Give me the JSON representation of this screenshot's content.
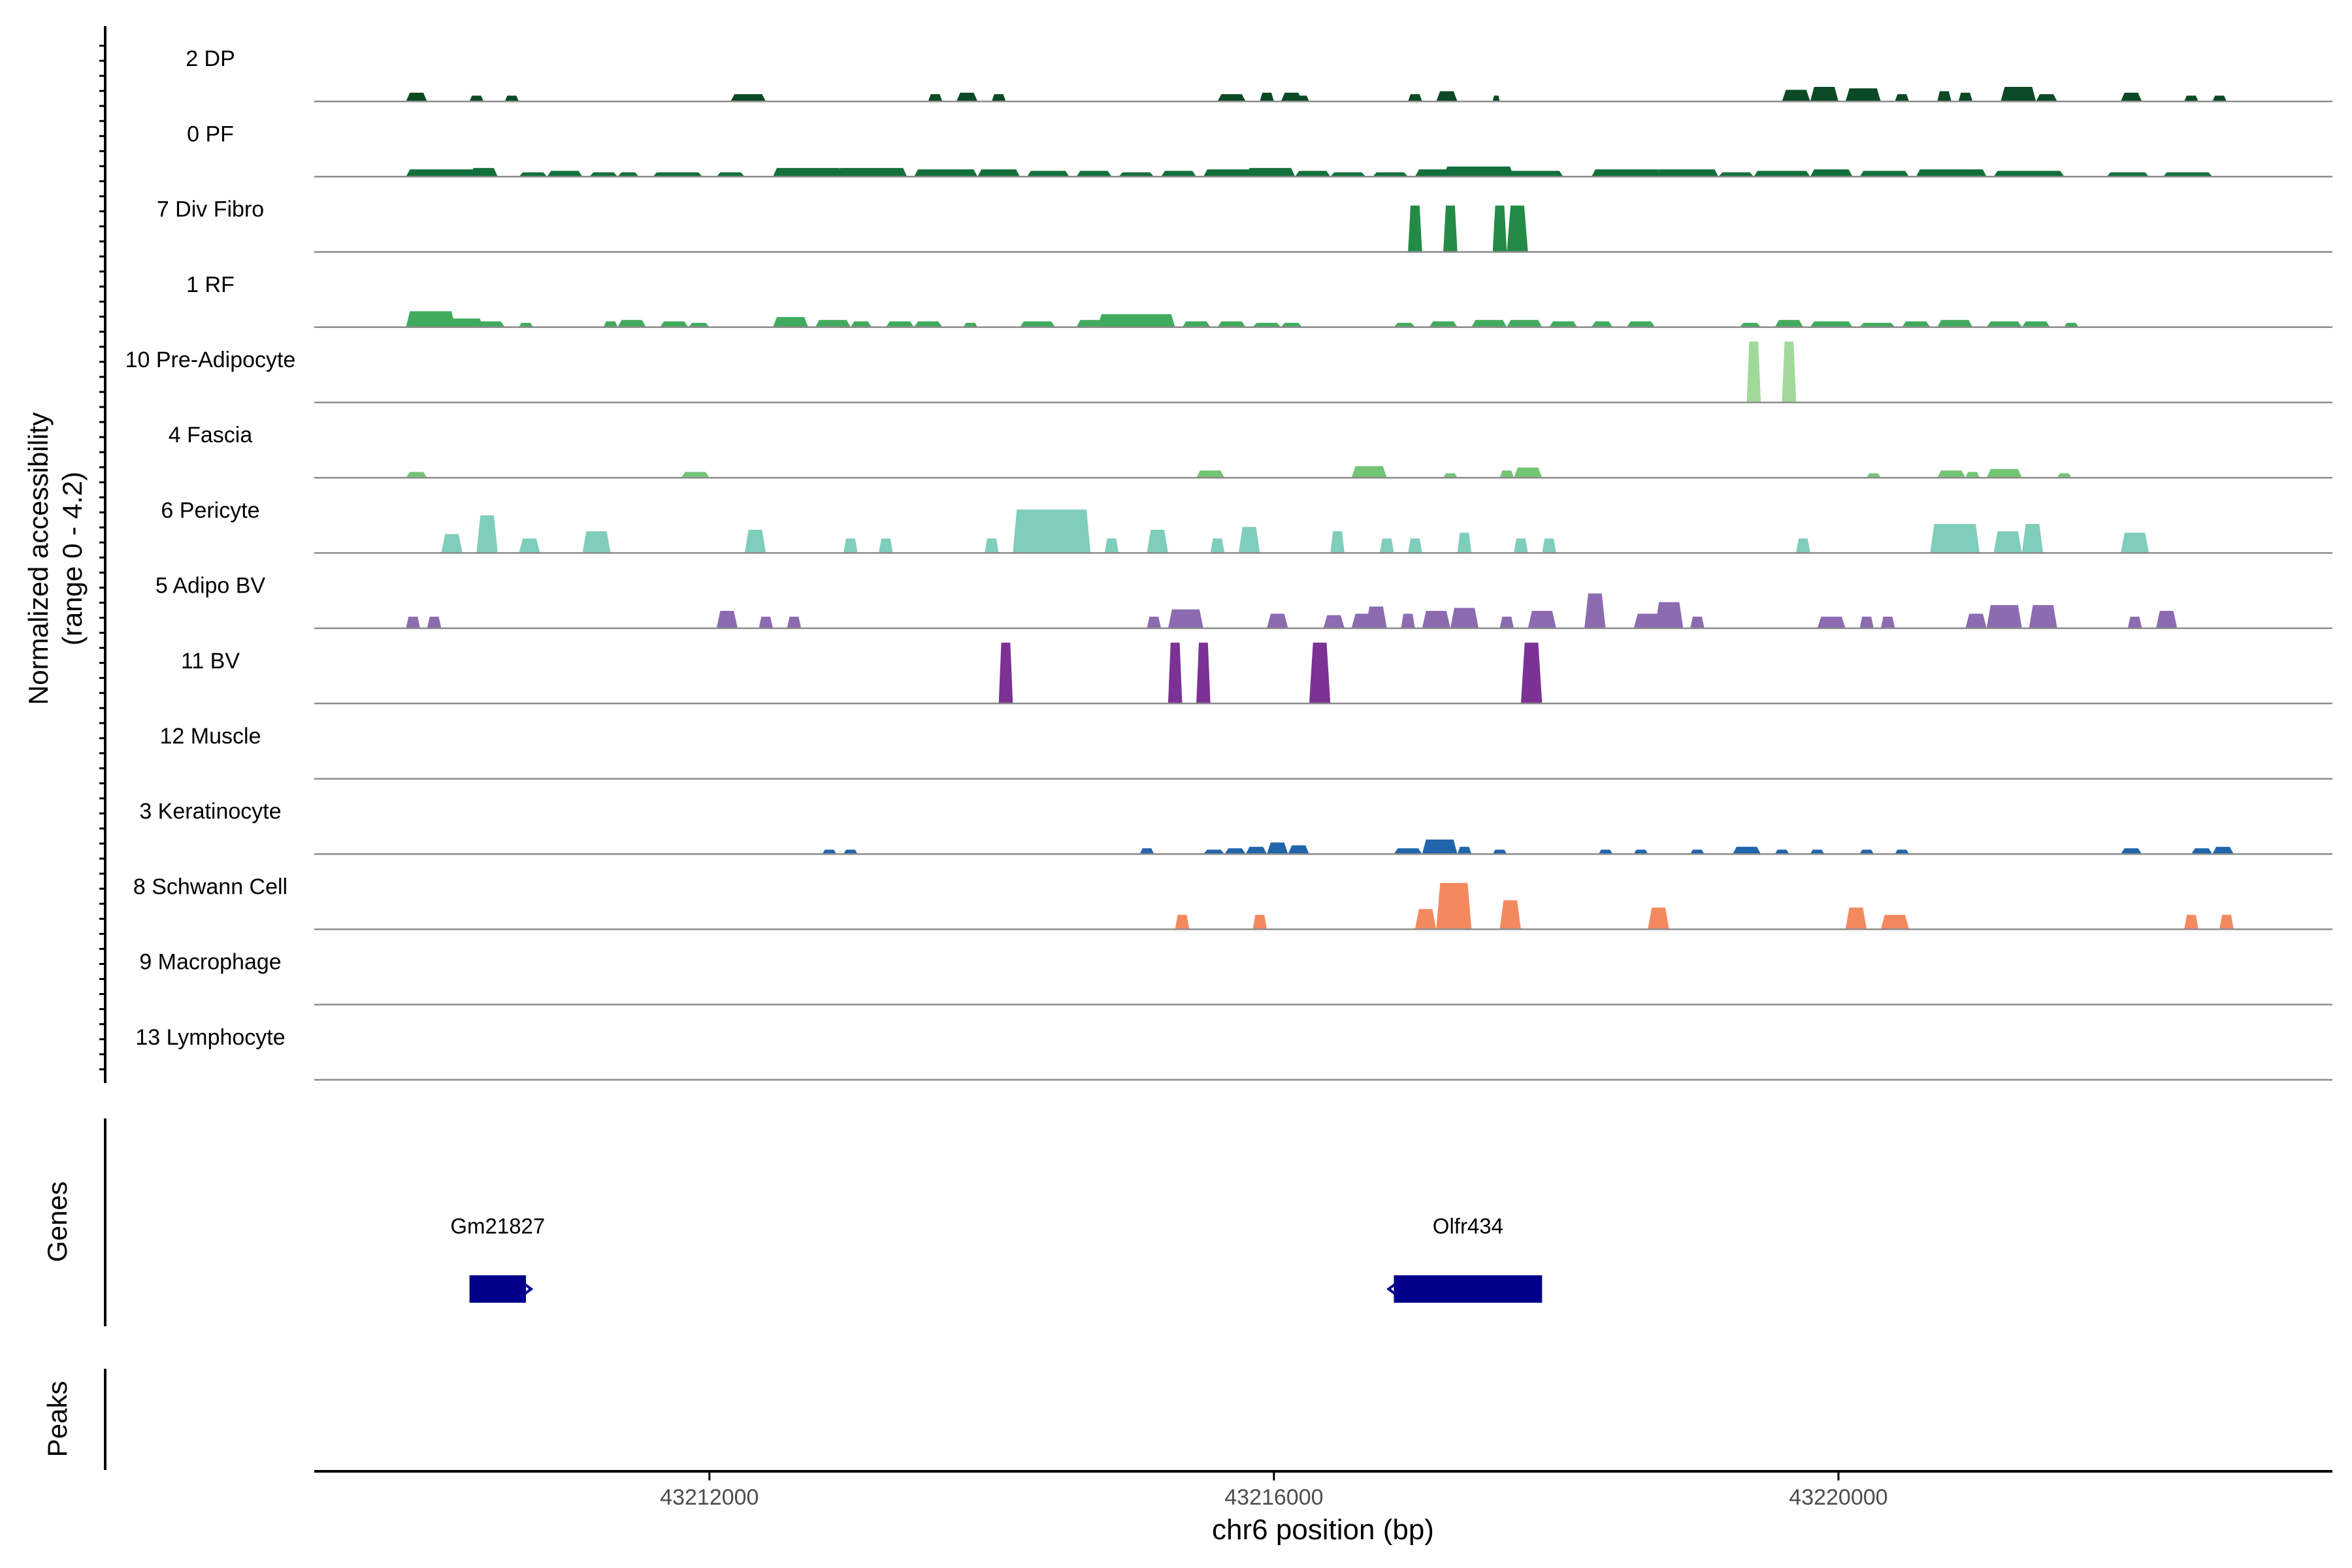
{
  "chart_data": {
    "type": "area",
    "chrom": "chr6",
    "xlabel": "chr6 position (bp)",
    "xlim": [
      43209200,
      43223500
    ],
    "xticks": [
      43212000,
      43216000,
      43220000
    ],
    "y_axis_title_line1": "Normalized accessibility",
    "y_axis_title_line2": "(range 0 - 4.2)",
    "ylim": [
      0,
      4.2
    ],
    "genes_label": "Genes",
    "peaks_label": "Peaks",
    "tracks": [
      {
        "name": "2 DP",
        "color": "#0b4a24",
        "peaks": [
          [
            43209850,
            43210000,
            0.6
          ],
          [
            43210300,
            43210400,
            0.4
          ],
          [
            43210550,
            43210650,
            0.4
          ],
          [
            43212150,
            43212400,
            0.5
          ],
          [
            43213550,
            43213650,
            0.5
          ],
          [
            43213750,
            43213900,
            0.6
          ],
          [
            43214000,
            43214100,
            0.5
          ],
          [
            43215600,
            43215800,
            0.5
          ],
          [
            43215900,
            43216000,
            0.6
          ],
          [
            43216050,
            43216200,
            0.6
          ],
          [
            43216150,
            43216250,
            0.4
          ],
          [
            43216950,
            43217050,
            0.5
          ],
          [
            43217150,
            43217300,
            0.7
          ],
          [
            43217550,
            43217600,
            0.4
          ],
          [
            43219600,
            43219800,
            0.8
          ],
          [
            43219800,
            43220000,
            1.0
          ],
          [
            43220050,
            43220300,
            0.9
          ],
          [
            43220400,
            43220500,
            0.5
          ],
          [
            43220700,
            43220800,
            0.7
          ],
          [
            43220850,
            43220950,
            0.6
          ],
          [
            43221150,
            43221400,
            1.0
          ],
          [
            43221400,
            43221550,
            0.5
          ],
          [
            43222000,
            43222150,
            0.6
          ],
          [
            43222450,
            43222550,
            0.4
          ],
          [
            43222650,
            43222750,
            0.4
          ]
        ]
      },
      {
        "name": "0 PF",
        "color": "#13703a",
        "peaks": [
          [
            43209850,
            43210400,
            0.5
          ],
          [
            43210300,
            43210500,
            0.6
          ],
          [
            43210650,
            43210850,
            0.3
          ],
          [
            43210850,
            43211100,
            0.4
          ],
          [
            43211150,
            43211350,
            0.3
          ],
          [
            43211350,
            43211500,
            0.3
          ],
          [
            43211600,
            43211950,
            0.3
          ],
          [
            43212050,
            43212250,
            0.3
          ],
          [
            43212450,
            43212950,
            0.6
          ],
          [
            43212900,
            43213400,
            0.6
          ],
          [
            43213450,
            43213900,
            0.5
          ],
          [
            43213900,
            43214200,
            0.5
          ],
          [
            43214250,
            43214550,
            0.4
          ],
          [
            43214600,
            43214850,
            0.4
          ],
          [
            43214900,
            43215150,
            0.3
          ],
          [
            43215200,
            43215450,
            0.4
          ],
          [
            43215500,
            43215850,
            0.5
          ],
          [
            43215800,
            43216150,
            0.6
          ],
          [
            43216150,
            43216400,
            0.4
          ],
          [
            43216400,
            43216650,
            0.3
          ],
          [
            43216700,
            43216950,
            0.3
          ],
          [
            43217000,
            43217300,
            0.5
          ],
          [
            43217200,
            43217700,
            0.7
          ],
          [
            43217650,
            43218050,
            0.4
          ],
          [
            43218250,
            43218750,
            0.5
          ],
          [
            43218700,
            43219150,
            0.5
          ],
          [
            43219150,
            43219400,
            0.3
          ],
          [
            43219400,
            43219800,
            0.4
          ],
          [
            43219800,
            43220100,
            0.5
          ],
          [
            43220150,
            43220500,
            0.4
          ],
          [
            43220550,
            43221050,
            0.5
          ],
          [
            43221100,
            43221600,
            0.4
          ],
          [
            43221900,
            43222200,
            0.3
          ],
          [
            43222300,
            43222650,
            0.3
          ]
        ]
      },
      {
        "name": "7 Div Fibro",
        "color": "#238b45",
        "peaks": [
          [
            43216950,
            43217050,
            3.2
          ],
          [
            43217200,
            43217300,
            3.2
          ],
          [
            43217550,
            43217650,
            3.2
          ],
          [
            43217650,
            43217800,
            3.2
          ]
        ]
      },
      {
        "name": "1 RF",
        "color": "#41ab5d",
        "peaks": [
          [
            43209850,
            43210200,
            1.1
          ],
          [
            43210100,
            43210400,
            0.6
          ],
          [
            43210350,
            43210550,
            0.4
          ],
          [
            43210650,
            43210750,
            0.3
          ],
          [
            43211250,
            43211350,
            0.4
          ],
          [
            43211350,
            43211550,
            0.5
          ],
          [
            43211650,
            43211850,
            0.4
          ],
          [
            43211850,
            43212000,
            0.3
          ],
          [
            43212450,
            43212700,
            0.7
          ],
          [
            43212750,
            43213000,
            0.5
          ],
          [
            43213000,
            43213150,
            0.4
          ],
          [
            43213250,
            43213450,
            0.4
          ],
          [
            43213450,
            43213650,
            0.4
          ],
          [
            43213800,
            43213900,
            0.3
          ],
          [
            43214200,
            43214450,
            0.4
          ],
          [
            43214600,
            43214800,
            0.5
          ],
          [
            43214750,
            43215300,
            0.9
          ],
          [
            43215050,
            43215250,
            0.6
          ],
          [
            43215350,
            43215550,
            0.4
          ],
          [
            43215600,
            43215800,
            0.4
          ],
          [
            43215850,
            43216050,
            0.3
          ],
          [
            43216050,
            43216200,
            0.3
          ],
          [
            43216850,
            43217000,
            0.3
          ],
          [
            43217100,
            43217300,
            0.4
          ],
          [
            43217400,
            43217650,
            0.5
          ],
          [
            43217650,
            43217900,
            0.5
          ],
          [
            43217950,
            43218150,
            0.4
          ],
          [
            43218250,
            43218400,
            0.4
          ],
          [
            43218500,
            43218700,
            0.4
          ],
          [
            43219300,
            43219450,
            0.3
          ],
          [
            43219550,
            43219750,
            0.5
          ],
          [
            43219800,
            43220100,
            0.4
          ],
          [
            43220150,
            43220400,
            0.3
          ],
          [
            43220450,
            43220650,
            0.4
          ],
          [
            43220700,
            43220950,
            0.5
          ],
          [
            43221050,
            43221300,
            0.4
          ],
          [
            43221300,
            43221500,
            0.4
          ],
          [
            43221600,
            43221700,
            0.3
          ]
        ]
      },
      {
        "name": "10 Pre-Adipocyte",
        "color": "#a1d99b",
        "peaks": [
          [
            43219350,
            43219450,
            4.2
          ],
          [
            43219600,
            43219700,
            4.2
          ]
        ]
      },
      {
        "name": "4 Fascia",
        "color": "#74c476",
        "peaks": [
          [
            43209850,
            43210000,
            0.4
          ],
          [
            43211800,
            43212000,
            0.4
          ],
          [
            43215450,
            43215650,
            0.5
          ],
          [
            43216550,
            43216800,
            0.8
          ],
          [
            43217200,
            43217300,
            0.3
          ],
          [
            43217600,
            43217700,
            0.5
          ],
          [
            43217700,
            43217900,
            0.7
          ],
          [
            43220200,
            43220300,
            0.3
          ],
          [
            43220700,
            43220900,
            0.5
          ],
          [
            43220900,
            43221000,
            0.4
          ],
          [
            43221050,
            43221300,
            0.6
          ],
          [
            43221550,
            43221650,
            0.3
          ]
        ]
      },
      {
        "name": "6 Pericyte",
        "color": "#7fcdbb",
        "peaks": [
          [
            43210100,
            43210250,
            1.3
          ],
          [
            43210350,
            43210500,
            2.6
          ],
          [
            43210650,
            43210800,
            1.0
          ],
          [
            43211100,
            43211300,
            1.5
          ],
          [
            43212250,
            43212400,
            1.6
          ],
          [
            43212950,
            43213050,
            1.0
          ],
          [
            43213200,
            43213300,
            1.0
          ],
          [
            43213950,
            43214050,
            1.0
          ],
          [
            43214150,
            43214700,
            3.0
          ],
          [
            43214800,
            43214900,
            1.0
          ],
          [
            43215100,
            43215250,
            1.6
          ],
          [
            43215550,
            43215650,
            1.0
          ],
          [
            43215750,
            43215900,
            1.8
          ],
          [
            43216400,
            43216500,
            1.5
          ],
          [
            43216750,
            43216850,
            1.0
          ],
          [
            43216950,
            43217050,
            1.0
          ],
          [
            43217300,
            43217400,
            1.4
          ],
          [
            43217700,
            43217800,
            1.0
          ],
          [
            43217900,
            43218000,
            1.0
          ],
          [
            43219700,
            43219800,
            1.0
          ],
          [
            43220650,
            43221000,
            2.0
          ],
          [
            43221100,
            43221300,
            1.5
          ],
          [
            43221300,
            43221450,
            2.0
          ],
          [
            43222000,
            43222200,
            1.4
          ]
        ]
      },
      {
        "name": "5 Adipo BV",
        "color": "#8c6bb1",
        "peaks": [
          [
            43209850,
            43209950,
            0.8
          ],
          [
            43210000,
            43210100,
            0.8
          ],
          [
            43212050,
            43212200,
            1.2
          ],
          [
            43212350,
            43212450,
            0.8
          ],
          [
            43212550,
            43212650,
            0.8
          ],
          [
            43215100,
            43215200,
            0.8
          ],
          [
            43215250,
            43215500,
            1.3
          ],
          [
            43215950,
            43216100,
            1.0
          ],
          [
            43216350,
            43216500,
            0.9
          ],
          [
            43216550,
            43216700,
            1.0
          ],
          [
            43216650,
            43216800,
            1.5
          ],
          [
            43216900,
            43217000,
            1.0
          ],
          [
            43217050,
            43217250,
            1.2
          ],
          [
            43217250,
            43217450,
            1.4
          ],
          [
            43217600,
            43217700,
            0.8
          ],
          [
            43217800,
            43218000,
            1.2
          ],
          [
            43218200,
            43218350,
            2.4
          ],
          [
            43218550,
            43218750,
            1.0
          ],
          [
            43218700,
            43218900,
            1.8
          ],
          [
            43218950,
            43219050,
            0.8
          ],
          [
            43219850,
            43220050,
            0.8
          ],
          [
            43220150,
            43220250,
            0.8
          ],
          [
            43220300,
            43220400,
            0.8
          ],
          [
            43220900,
            43221050,
            1.0
          ],
          [
            43221050,
            43221300,
            1.6
          ],
          [
            43221350,
            43221550,
            1.6
          ],
          [
            43222050,
            43222150,
            0.8
          ],
          [
            43222250,
            43222400,
            1.2
          ]
        ]
      },
      {
        "name": "11 BV",
        "color": "#7b3294",
        "peaks": [
          [
            43214050,
            43214150,
            4.2
          ],
          [
            43215250,
            43215350,
            4.2
          ],
          [
            43215450,
            43215550,
            4.2
          ],
          [
            43216250,
            43216400,
            4.2
          ],
          [
            43217750,
            43217900,
            4.2
          ]
        ]
      },
      {
        "name": "12 Muscle",
        "color": "#3b7dc4",
        "peaks": []
      },
      {
        "name": "3 Keratinocyte",
        "color": "#2166ac",
        "peaks": [
          [
            43212800,
            43212900,
            0.3
          ],
          [
            43212950,
            43213050,
            0.3
          ],
          [
            43215050,
            43215150,
            0.4
          ],
          [
            43215500,
            43215650,
            0.3
          ],
          [
            43215650,
            43215800,
            0.4
          ],
          [
            43215800,
            43215950,
            0.5
          ],
          [
            43215950,
            43216100,
            0.8
          ],
          [
            43216100,
            43216250,
            0.6
          ],
          [
            43216850,
            43217050,
            0.4
          ],
          [
            43217050,
            43217300,
            1.0
          ],
          [
            43217300,
            43217400,
            0.5
          ],
          [
            43217550,
            43217650,
            0.3
          ],
          [
            43218300,
            43218400,
            0.3
          ],
          [
            43218550,
            43218650,
            0.3
          ],
          [
            43218950,
            43219050,
            0.3
          ],
          [
            43219250,
            43219450,
            0.5
          ],
          [
            43219550,
            43219650,
            0.3
          ],
          [
            43219800,
            43219900,
            0.3
          ],
          [
            43220150,
            43220250,
            0.3
          ],
          [
            43220400,
            43220500,
            0.3
          ],
          [
            43222000,
            43222150,
            0.4
          ],
          [
            43222500,
            43222650,
            0.4
          ],
          [
            43222650,
            43222800,
            0.5
          ]
        ]
      },
      {
        "name": "8 Schwann Cell",
        "color": "#f4895f",
        "peaks": [
          [
            43215300,
            43215400,
            1.0
          ],
          [
            43215850,
            43215950,
            1.0
          ],
          [
            43217000,
            43217150,
            1.4
          ],
          [
            43217150,
            43217400,
            3.2
          ],
          [
            43217600,
            43217750,
            2.0
          ],
          [
            43218650,
            43218800,
            1.5
          ],
          [
            43220050,
            43220200,
            1.5
          ],
          [
            43220300,
            43220500,
            1.0
          ],
          [
            43222450,
            43222550,
            1.0
          ],
          [
            43222700,
            43222800,
            1.0
          ]
        ]
      },
      {
        "name": "9 Macrophage",
        "color": "#d73027",
        "peaks": []
      },
      {
        "name": "13 Lymphocyte",
        "color": "#b2182b",
        "peaks": []
      }
    ],
    "genes": [
      {
        "name": "Gm21827",
        "start": 43210300,
        "end": 43210700,
        "strand": "+"
      },
      {
        "name": "Olfr434",
        "start": 43216850,
        "end": 43217900,
        "strand": "-"
      }
    ],
    "gene_color": "#00008b"
  }
}
